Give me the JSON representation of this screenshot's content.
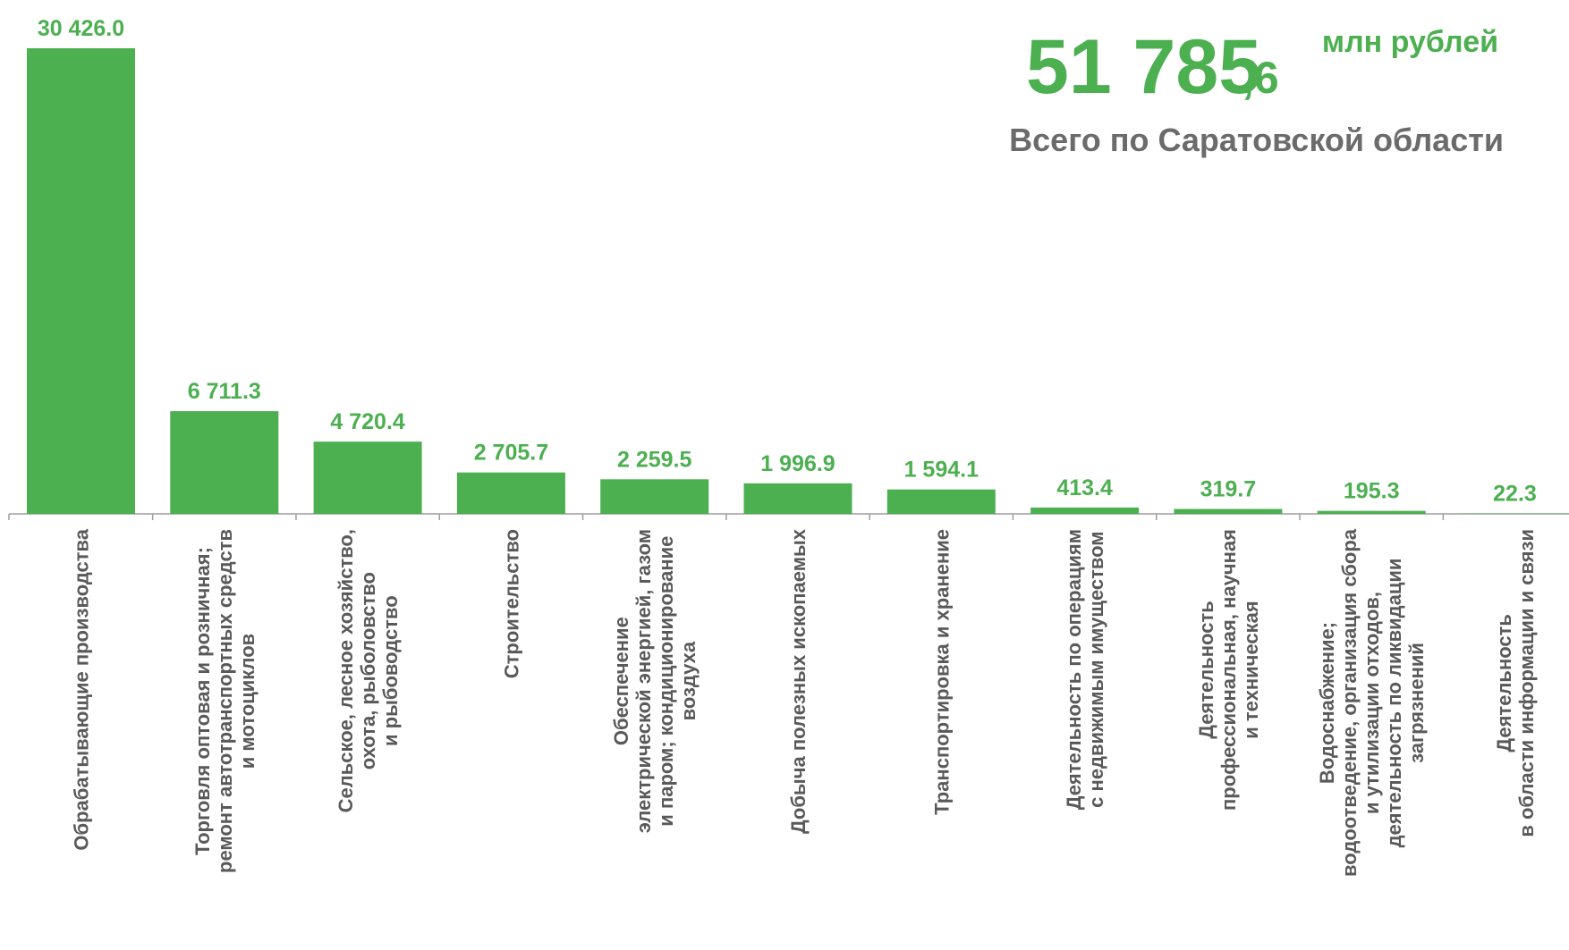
{
  "chart_data": {
    "type": "bar",
    "total_integer": "51 785",
    "total_fraction": ",6",
    "total_unit": "млн рублей",
    "total_caption": "Всего по Саратовской области",
    "color": "#4caf50",
    "categories": [
      [
        "Обрабатывающие производства"
      ],
      [
        "Торговля оптовая и розничная;",
        "ремонт автотранспортных средств",
        "и мотоциклов"
      ],
      [
        "Сельское, лесное хозяйство,",
        "охота, рыболовство",
        "и  рыбоводство"
      ],
      [
        "Строительство"
      ],
      [
        "Обеспечение",
        "электрической энергией, газом",
        "и паром; кондиционирование",
        "воздуха"
      ],
      [
        "Добыча полезных ископаемых"
      ],
      [
        "Транспортировка и хранение"
      ],
      [
        "Деятельность по операциям",
        "с недвижимым имуществом"
      ],
      [
        "Деятельность",
        "профессиональная, научная",
        "и техническая"
      ],
      [
        "Водоснабжение;",
        "водоотведение, организация сбора",
        "и утилизации отходов,",
        "деятельность по ликвидации",
        "загрязнений"
      ],
      [
        "Деятельность",
        "в области информации и связи"
      ]
    ],
    "values": [
      30426.0,
      6711.3,
      4720.4,
      2705.7,
      2259.5,
      1996.9,
      1594.1,
      413.4,
      319.7,
      195.3,
      22.3
    ],
    "value_labels": [
      "30 426.0",
      "6 711.3",
      "4 720.4",
      "2 705.7",
      "2 259.5",
      "1 996.9",
      "1 594.1",
      "413.4",
      "319.7",
      "195.3",
      "22.3"
    ]
  }
}
